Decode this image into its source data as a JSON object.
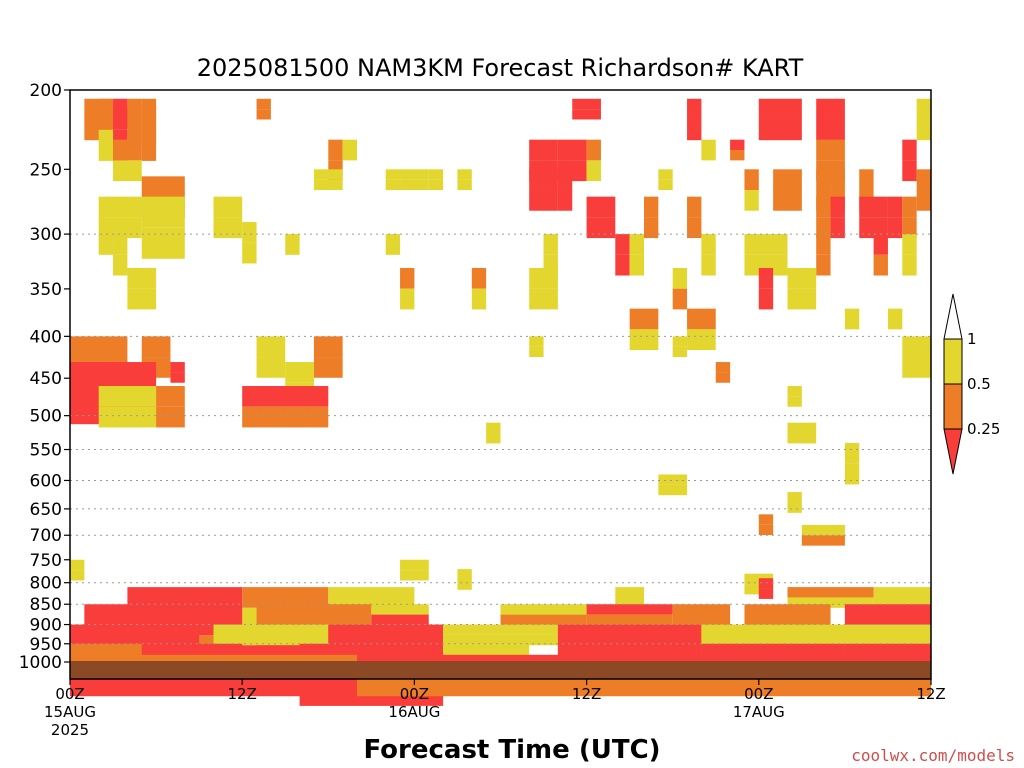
{
  "chart_data": {
    "type": "heatmap",
    "title": "2025081500 NAM3KM Forecast Richardson# KART",
    "xlabel": "Forecast Time (UTC)",
    "ylabel": "",
    "credit": "coolwx.com/models",
    "x_ticks": [
      {
        "hour": 0,
        "lines": [
          "00Z",
          "15AUG",
          "2025"
        ]
      },
      {
        "hour": 12,
        "lines": [
          "12Z"
        ]
      },
      {
        "hour": 24,
        "lines": [
          "00Z",
          "16AUG"
        ]
      },
      {
        "hour": 36,
        "lines": [
          "12Z"
        ]
      },
      {
        "hour": 48,
        "lines": [
          "00Z",
          "17AUG"
        ]
      },
      {
        "hour": 60,
        "lines": [
          "12Z"
        ]
      }
    ],
    "xlim": [
      0,
      60
    ],
    "y_ticks": [
      200,
      250,
      300,
      350,
      400,
      450,
      500,
      550,
      600,
      650,
      700,
      750,
      800,
      850,
      900,
      950,
      1000
    ],
    "ylim_hPa": [
      200,
      1000
    ],
    "y_scale": "log",
    "grid_levels": [
      300,
      400,
      500,
      550,
      600,
      650,
      700,
      800,
      850,
      900,
      950
    ],
    "surface_color": "#8b4a25",
    "colorbar": {
      "labels": [
        "1",
        "0.5",
        "0.25"
      ],
      "colors": [
        "#ffffff",
        "#e3d62f",
        "#ee7d27",
        "#f93d3b"
      ]
    },
    "bin_meaning": [
      "Ri<0.25",
      "0.25–0.5",
      "0.5–1"
    ],
    "cells": [
      [
        1,
        205,
        2,
        2,
        1,
        1
      ],
      [
        2,
        205,
        1,
        3,
        1,
        2
      ],
      [
        3,
        205,
        1,
        3,
        0,
        0
      ],
      [
        3,
        210,
        1,
        1,
        0,
        0
      ],
      [
        4,
        205,
        1,
        2,
        1,
        1
      ],
      [
        5,
        205,
        1,
        3,
        1,
        1
      ],
      [
        5,
        208,
        1,
        2,
        1,
        1
      ],
      [
        13,
        205,
        1,
        1,
        1,
        1
      ],
      [
        35,
        205,
        2,
        1,
        0,
        0
      ],
      [
        43,
        205,
        1,
        2,
        0,
        0
      ],
      [
        48,
        205,
        3,
        2,
        0,
        0
      ],
      [
        52,
        205,
        2,
        2,
        0,
        0
      ],
      [
        59,
        205,
        1,
        2,
        2,
        2
      ],
      [
        3,
        230,
        2,
        2,
        1,
        2
      ],
      [
        18,
        230,
        1,
        2,
        1,
        1
      ],
      [
        19,
        230,
        1,
        1,
        2,
        2
      ],
      [
        32,
        230,
        2,
        2,
        0,
        0
      ],
      [
        34,
        230,
        2,
        2,
        0,
        0
      ],
      [
        36,
        230,
        1,
        2,
        1,
        2
      ],
      [
        44,
        230,
        1,
        1,
        2,
        2
      ],
      [
        46,
        230,
        1,
        1,
        0,
        1
      ],
      [
        52,
        230,
        2,
        2,
        1,
        1
      ],
      [
        58,
        230,
        1,
        2,
        0,
        0
      ],
      [
        17,
        250,
        2,
        1,
        2,
        2
      ],
      [
        22,
        250,
        1,
        1,
        2,
        2
      ],
      [
        23,
        250,
        2,
        1,
        2,
        2
      ],
      [
        25,
        250,
        1,
        1,
        2,
        2
      ],
      [
        27,
        250,
        1,
        1,
        2,
        2
      ],
      [
        32,
        250,
        2,
        2,
        0,
        0
      ],
      [
        34,
        250,
        1,
        2,
        0,
        0
      ],
      [
        41,
        250,
        1,
        1,
        2,
        2
      ],
      [
        47,
        250,
        1,
        2,
        1,
        2
      ],
      [
        49,
        250,
        1,
        2,
        1,
        1
      ],
      [
        50,
        250,
        1,
        2,
        1,
        1
      ],
      [
        52,
        250,
        1,
        2,
        1,
        1
      ],
      [
        53,
        250,
        1,
        2,
        1,
        1
      ],
      [
        55,
        250,
        1,
        2,
        1,
        1
      ],
      [
        59,
        250,
        1,
        2,
        1,
        1
      ],
      [
        5,
        255,
        3,
        2,
        1,
        1
      ],
      [
        2,
        270,
        3,
        2,
        2,
        2
      ],
      [
        5,
        270,
        3,
        3,
        2,
        2
      ],
      [
        10,
        270,
        2,
        2,
        2,
        2
      ],
      [
        36,
        270,
        2,
        2,
        0,
        0
      ],
      [
        40,
        270,
        1,
        2,
        1,
        1
      ],
      [
        43,
        270,
        1,
        2,
        1,
        1
      ],
      [
        52,
        270,
        1,
        2,
        1,
        1
      ],
      [
        53,
        270,
        1,
        2,
        0,
        0
      ],
      [
        55,
        270,
        2,
        2,
        0,
        0
      ],
      [
        57,
        270,
        1,
        2,
        0,
        0
      ],
      [
        58,
        270,
        1,
        2,
        1,
        1
      ],
      [
        12,
        290,
        1,
        2,
        2,
        2
      ],
      [
        2,
        300,
        1,
        1,
        2,
        2
      ],
      [
        3,
        300,
        1,
        2,
        2,
        2
      ],
      [
        15,
        300,
        1,
        1,
        2,
        2
      ],
      [
        22,
        300,
        1,
        1,
        2,
        2
      ],
      [
        33,
        300,
        1,
        2,
        2,
        2
      ],
      [
        38,
        300,
        1,
        2,
        0,
        0
      ],
      [
        39,
        300,
        1,
        2,
        2,
        2
      ],
      [
        44,
        300,
        1,
        2,
        2,
        2
      ],
      [
        47,
        300,
        3,
        2,
        2,
        2
      ],
      [
        52,
        300,
        1,
        2,
        1,
        1
      ],
      [
        56,
        300,
        1,
        2,
        0,
        1
      ],
      [
        58,
        300,
        1,
        2,
        2,
        2
      ],
      [
        4,
        330,
        2,
        2,
        2,
        2
      ],
      [
        23,
        330,
        1,
        2,
        1,
        2
      ],
      [
        28,
        330,
        1,
        2,
        1,
        2
      ],
      [
        32,
        330,
        2,
        2,
        2,
        2
      ],
      [
        42,
        330,
        1,
        2,
        2,
        1
      ],
      [
        48,
        330,
        1,
        2,
        0,
        0
      ],
      [
        50,
        330,
        2,
        2,
        2,
        2
      ],
      [
        39,
        370,
        2,
        2,
        1,
        2
      ],
      [
        43,
        370,
        2,
        2,
        1,
        2
      ],
      [
        54,
        370,
        1,
        1,
        2,
        2
      ],
      [
        57,
        370,
        1,
        1,
        2,
        2
      ],
      [
        0,
        400,
        4,
        3,
        1,
        0
      ],
      [
        5,
        400,
        2,
        2,
        1,
        1
      ],
      [
        13,
        400,
        2,
        2,
        2,
        2
      ],
      [
        17,
        400,
        2,
        2,
        1,
        1
      ],
      [
        32,
        400,
        1,
        1,
        2,
        2
      ],
      [
        42,
        400,
        1,
        1,
        2,
        2
      ],
      [
        58,
        400,
        2,
        2,
        2,
        2
      ],
      [
        0,
        430,
        6,
        3,
        0,
        0
      ],
      [
        7,
        430,
        1,
        1,
        0,
        0
      ],
      [
        15,
        430,
        2,
        2,
        2,
        2
      ],
      [
        45,
        430,
        1,
        1,
        1,
        1
      ],
      [
        2,
        460,
        4,
        2,
        2,
        2
      ],
      [
        6,
        460,
        2,
        2,
        1,
        1
      ],
      [
        12,
        460,
        6,
        2,
        0,
        1
      ],
      [
        50,
        460,
        1,
        1,
        2,
        2
      ],
      [
        29,
        510,
        1,
        1,
        2,
        2
      ],
      [
        50,
        510,
        2,
        1,
        2,
        2
      ],
      [
        54,
        540,
        1,
        2,
        2,
        2
      ],
      [
        41,
        590,
        2,
        1,
        2,
        2
      ],
      [
        50,
        620,
        1,
        1,
        2,
        2
      ],
      [
        48,
        660,
        1,
        1,
        1,
        1
      ],
      [
        51,
        680,
        3,
        1,
        2,
        1
      ],
      [
        0,
        750,
        1,
        1,
        2,
        2
      ],
      [
        23,
        750,
        2,
        1,
        2,
        2
      ],
      [
        27,
        770,
        1,
        1,
        2,
        2
      ],
      [
        47,
        780,
        2,
        1,
        2,
        2
      ],
      [
        48,
        790,
        1,
        1,
        0,
        0
      ],
      [
        4,
        810,
        8,
        2,
        0,
        1
      ],
      [
        12,
        810,
        6,
        2,
        1,
        2
      ],
      [
        18,
        810,
        6,
        1,
        2,
        2
      ],
      [
        38,
        810,
        2,
        1,
        2,
        2
      ],
      [
        50,
        810,
        6,
        1,
        1,
        2
      ],
      [
        56,
        810,
        4,
        1,
        2,
        2
      ],
      [
        1,
        850,
        11,
        3,
        0,
        1
      ],
      [
        13,
        850,
        8,
        2,
        1,
        1
      ],
      [
        21,
        850,
        4,
        1,
        2,
        0
      ],
      [
        30,
        850,
        6,
        1,
        2,
        1
      ],
      [
        36,
        850,
        6,
        1,
        0,
        1
      ],
      [
        42,
        850,
        4,
        2,
        1,
        2
      ],
      [
        47,
        850,
        6,
        2,
        1,
        0
      ],
      [
        54,
        850,
        6,
        2,
        0,
        1
      ],
      [
        0,
        900,
        9,
        3,
        0,
        0
      ],
      [
        10,
        900,
        8,
        2,
        2,
        0
      ],
      [
        18,
        900,
        8,
        3,
        0,
        1
      ],
      [
        26,
        900,
        10,
        1,
        2,
        2
      ],
      [
        34,
        900,
        10,
        2,
        0,
        1
      ],
      [
        44,
        900,
        6,
        2,
        2,
        0
      ],
      [
        50,
        900,
        10,
        2,
        2,
        1
      ],
      [
        0,
        950,
        5,
        2,
        1,
        0
      ],
      [
        6,
        950,
        6,
        2,
        0,
        0
      ],
      [
        16,
        950,
        10,
        3,
        0,
        0
      ],
      [
        26,
        950,
        6,
        2,
        2,
        1
      ],
      [
        34,
        950,
        10,
        2,
        0,
        1
      ],
      [
        44,
        950,
        10,
        2,
        0,
        2
      ],
      [
        54,
        950,
        6,
        2,
        0,
        0
      ],
      [
        0,
        980,
        20,
        2,
        1,
        0
      ],
      [
        20,
        980,
        40,
        2,
        0,
        1
      ]
    ]
  }
}
